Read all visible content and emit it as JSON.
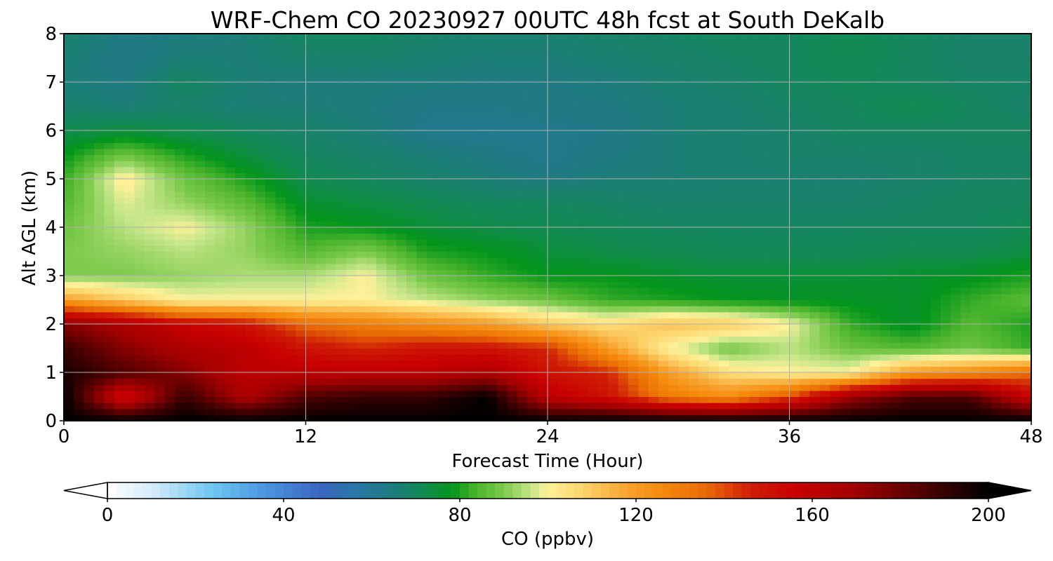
{
  "chart_data": {
    "type": "heatmap",
    "title": "WRF-Chem CO  20230927 00UTC 48h fcst at South DeKalb",
    "xlabel": "Forecast Time (Hour)",
    "ylabel": "Alt AGL (km)",
    "xlim": [
      0,
      48
    ],
    "ylim": [
      0,
      8
    ],
    "xticks": [
      0,
      12,
      24,
      36,
      48
    ],
    "yticks": [
      0,
      1,
      2,
      3,
      4,
      5,
      6,
      7,
      8
    ],
    "grid": true,
    "x": [
      0,
      3,
      6,
      9,
      12,
      15,
      18,
      21,
      24,
      27,
      30,
      33,
      36,
      39,
      42,
      45,
      48
    ],
    "y": [
      0,
      0.5,
      1,
      1.5,
      2,
      2.5,
      3,
      3.5,
      4,
      4.5,
      5,
      5.5,
      6,
      6.5,
      7,
      7.5,
      8
    ],
    "z": [
      [
        200,
        200,
        200,
        200,
        200,
        200,
        200,
        200,
        200,
        200,
        200,
        200,
        200,
        200,
        200,
        200,
        200
      ],
      [
        200,
        150,
        190,
        165,
        185,
        190,
        190,
        200,
        160,
        150,
        130,
        125,
        140,
        170,
        185,
        185,
        155
      ],
      [
        195,
        185,
        175,
        160,
        160,
        160,
        160,
        165,
        150,
        145,
        120,
        105,
        100,
        100,
        120,
        125,
        135
      ],
      [
        190,
        175,
        165,
        160,
        150,
        145,
        150,
        150,
        145,
        120,
        100,
        88,
        95,
        88,
        85,
        88,
        82
      ],
      [
        175,
        165,
        155,
        150,
        135,
        130,
        125,
        120,
        110,
        105,
        112,
        110,
        100,
        82,
        76,
        85,
        80
      ],
      [
        120,
        110,
        100,
        100,
        100,
        100,
        96,
        92,
        88,
        82,
        80,
        78,
        77,
        77,
        76,
        82,
        86
      ],
      [
        90,
        90,
        92,
        94,
        94,
        100,
        88,
        82,
        78,
        78,
        76,
        75,
        75,
        75,
        76,
        77,
        80
      ],
      [
        90,
        92,
        95,
        92,
        85,
        90,
        80,
        78,
        75,
        73,
        72,
        71,
        71,
        71,
        72,
        72,
        74
      ],
      [
        88,
        95,
        100,
        92,
        80,
        78,
        75,
        73,
        72,
        71,
        70,
        70,
        70,
        70,
        70,
        70,
        72
      ],
      [
        85,
        98,
        92,
        86,
        76,
        74,
        72,
        70,
        70,
        69,
        68,
        68,
        68,
        68,
        69,
        70,
        70
      ],
      [
        82,
        102,
        88,
        80,
        72,
        70,
        68,
        66,
        64,
        66,
        66,
        67,
        67,
        67,
        68,
        69,
        69
      ],
      [
        78,
        88,
        80,
        74,
        70,
        68,
        66,
        64,
        62,
        64,
        66,
        67,
        68,
        68,
        68,
        69,
        69
      ],
      [
        72,
        74,
        72,
        70,
        68,
        66,
        62,
        61,
        62,
        63,
        66,
        67,
        68,
        70,
        70,
        70,
        70
      ],
      [
        68,
        66,
        68,
        66,
        66,
        65,
        63,
        63,
        64,
        64,
        66,
        67,
        69,
        70,
        72,
        70,
        68
      ],
      [
        66,
        64,
        70,
        66,
        65,
        65,
        65,
        64,
        64,
        65,
        67,
        68,
        70,
        71,
        70,
        69,
        69
      ],
      [
        67,
        63,
        66,
        66,
        68,
        68,
        67,
        66,
        66,
        67,
        68,
        69,
        70,
        72,
        70,
        68,
        68
      ],
      [
        68,
        63,
        65,
        66,
        70,
        70,
        68,
        67,
        67,
        68,
        69,
        70,
        70,
        72,
        70,
        68,
        68
      ]
    ]
  },
  "colorbar": {
    "label": "CO  (ppbv)",
    "vmin": 0,
    "vmax": 200,
    "ticks": [
      0,
      40,
      80,
      120,
      160,
      200
    ],
    "extend": "both",
    "stops": [
      {
        "v": 0,
        "c": "#ffffff"
      },
      {
        "v": 10,
        "c": "#d5ecfa"
      },
      {
        "v": 24,
        "c": "#6cc6f0"
      },
      {
        "v": 36,
        "c": "#4c94de"
      },
      {
        "v": 48,
        "c": "#3a66c0"
      },
      {
        "v": 56,
        "c": "#2a76a6"
      },
      {
        "v": 64,
        "c": "#1f7a82"
      },
      {
        "v": 72,
        "c": "#128a52"
      },
      {
        "v": 78,
        "c": "#03951c"
      },
      {
        "v": 84,
        "c": "#4db52d"
      },
      {
        "v": 90,
        "c": "#7dca4d"
      },
      {
        "v": 96,
        "c": "#c4e588"
      },
      {
        "v": 100,
        "c": "#fff19a"
      },
      {
        "v": 108,
        "c": "#fcd46c"
      },
      {
        "v": 118,
        "c": "#f7a330"
      },
      {
        "v": 126,
        "c": "#f58a0b"
      },
      {
        "v": 136,
        "c": "#e86a06"
      },
      {
        "v": 146,
        "c": "#cf1e06"
      },
      {
        "v": 156,
        "c": "#c80000"
      },
      {
        "v": 170,
        "c": "#a00000"
      },
      {
        "v": 185,
        "c": "#500000"
      },
      {
        "v": 200,
        "c": "#000000"
      }
    ]
  }
}
